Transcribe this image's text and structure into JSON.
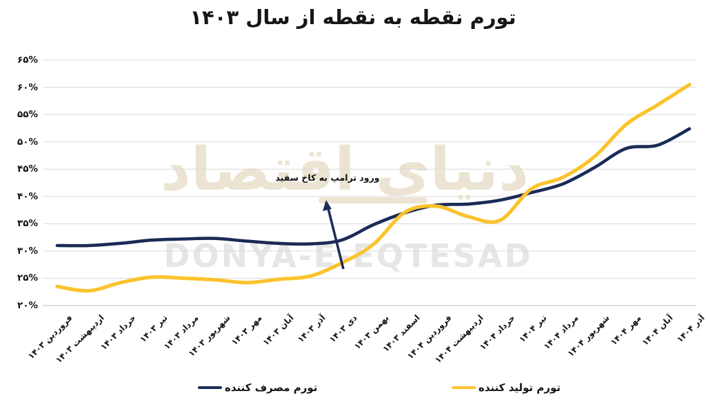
{
  "title": "تورم نقطه به نقطه از سال ۱۴۰۳",
  "watermark": {
    "fa": "دنیای اقتصاد",
    "en": "DONYA-E-EQTESAD"
  },
  "annotation": {
    "text": "ورود ترامپ به کاخ سفید"
  },
  "legend": [
    {
      "label": "تورم مصرف کننده",
      "color": "#1B2B57"
    },
    {
      "label": "تورم تولید کننده",
      "color": "#FBC32C"
    }
  ],
  "colors": {
    "consumer_line": "#1B2B57",
    "producer_line": "#FBC32C",
    "gridline": "#dadada",
    "axis_bottom": "#c0c0c0",
    "watermark_fa": "#ece4d2",
    "watermark_en": "#e6e6e6"
  },
  "chart_data": {
    "type": "line",
    "title": "تورم نقطه به نقطه از سال ۱۴۰۳",
    "categories": [
      "فروردین ۱۴۰۳",
      "اردیبهشت ۱۴۰۳",
      "خرداد ۱۴۰۳",
      "تیر ۱۴۰۳",
      "مرداد ۱۴۰۳",
      "شهریور ۱۴۰۳",
      "مهر ۱۴۰۳",
      "آبان ۱۴۰۳",
      "آذر ۱۴۰۳",
      "دی ۱۴۰۳",
      "بهمن ۱۴۰۳",
      "اسفند ۱۴۰۳",
      "فروردین ۱۴۰۴",
      "اردیبهشت ۱۴۰۴",
      "خرداد ۱۴۰۴",
      "تیر ۱۴۰۴",
      "مرداد ۱۴۰۴",
      "شهریور ۱۴۰۴",
      "مهر ۱۴۰۴",
      "آبان ۱۴۰۴",
      "آذر ۱۴۰۴"
    ],
    "series": [
      {
        "name": "تورم مصرف کننده",
        "color": "#1B2B57",
        "values": [
          31.0,
          31.0,
          31.4,
          32.0,
          32.2,
          32.3,
          31.8,
          31.4,
          31.3,
          32.0,
          34.8,
          37.0,
          38.4,
          38.6,
          39.3,
          40.7,
          42.3,
          45.3,
          48.8,
          49.4,
          52.4
        ]
      },
      {
        "name": "تورم تولید کننده",
        "color": "#FBC32C",
        "values": [
          23.5,
          22.7,
          24.2,
          25.2,
          25.0,
          24.7,
          24.2,
          24.8,
          25.4,
          27.8,
          31.2,
          37.1,
          38.2,
          36.3,
          35.6,
          41.4,
          43.5,
          47.3,
          53.2,
          56.8,
          60.5
        ]
      }
    ],
    "xlabel": "",
    "ylabel": "",
    "ylim": [
      20,
      65
    ],
    "ytick_values": [
      20,
      25,
      30,
      35,
      40,
      45,
      50,
      55,
      60,
      65
    ],
    "ytick_labels": [
      "۲۰%",
      "۲۵%",
      "۳۰%",
      "۳۵%",
      "۴۰%",
      "۴۵%",
      "۵۰%",
      "۵۵%",
      "۶۰%",
      "۶۵%"
    ],
    "grid": "horizontal",
    "legend_position": "bottom",
    "annotation": {
      "text": "ورود ترامپ به کاخ سفید",
      "points_to": "دی ۱۴۰۳"
    }
  }
}
